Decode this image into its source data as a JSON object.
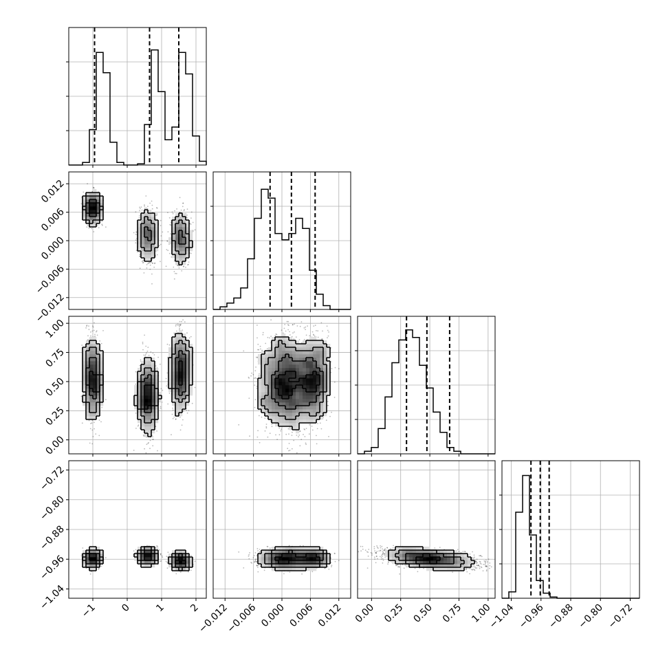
{
  "chart_data": {
    "type": "corner",
    "parameters": [
      {
        "range": [
          -1.7,
          2.3
        ],
        "ticks": [
          "−1",
          "0",
          "1",
          "2"
        ],
        "tick_values": [
          -1,
          0,
          1,
          2
        ],
        "quantiles": [
          -0.95,
          0.65,
          1.5
        ]
      },
      {
        "range": [
          -0.0145,
          0.0145
        ],
        "ticks": [
          "−0.012",
          "−0.006",
          "0.000",
          "0.006",
          "0.012"
        ],
        "tick_values": [
          -0.012,
          -0.006,
          0.0,
          0.006,
          0.012
        ],
        "quantiles": [
          -0.0025,
          0.002,
          0.007
        ]
      },
      {
        "range": [
          -0.12,
          1.06
        ],
        "ticks": [
          "0.00",
          "0.25",
          "0.50",
          "0.75",
          "1.00"
        ],
        "tick_values": [
          0.0,
          0.25,
          0.5,
          0.75,
          1.0
        ],
        "quantiles": [
          0.3,
          0.475,
          0.67
        ]
      },
      {
        "range": [
          -1.065,
          -0.695
        ],
        "ticks": [
          "−1.04",
          "−0.96",
          "−0.88",
          "−0.80",
          "−0.72"
        ],
        "tick_values": [
          -1.04,
          -0.96,
          -0.88,
          -0.8,
          -0.72
        ],
        "quantiles": [
          -0.987,
          -0.962,
          -0.938
        ]
      }
    ],
    "histograms": [
      {
        "edges_start": -1.7,
        "bin_width": 0.2,
        "counts": [
          0,
          0,
          0.02,
          0.28,
          0.89,
          0.73,
          0.18,
          0.02,
          0,
          0,
          0.01,
          0.32,
          0.91,
          0.58,
          0.2,
          0.3,
          0.89,
          0.72,
          0.23,
          0.03
        ]
      },
      {
        "edges_start": -0.0145,
        "bin_width": 0.00145,
        "counts": [
          0,
          0.02,
          0.05,
          0.09,
          0.17,
          0.4,
          0.72,
          0.95,
          0.88,
          0.6,
          0.55,
          0.6,
          0.72,
          0.64,
          0.31,
          0.12,
          0.03,
          0,
          0,
          0
        ]
      },
      {
        "edges_start": -0.12,
        "bin_width": 0.059,
        "counts": [
          0,
          0.02,
          0.05,
          0.2,
          0.45,
          0.72,
          0.9,
          0.98,
          0.92,
          0.7,
          0.52,
          0.33,
          0.17,
          0.05,
          0.02,
          0,
          0,
          0,
          0,
          0
        ]
      },
      {
        "edges_start": -1.065,
        "bin_width": 0.0185,
        "counts": [
          0,
          0.05,
          0.68,
          0.97,
          0.5,
          0.14,
          0.04,
          0.01,
          0,
          0,
          0,
          0,
          0,
          0,
          0,
          0,
          0,
          0,
          0,
          0
        ]
      }
    ],
    "grid": true
  }
}
